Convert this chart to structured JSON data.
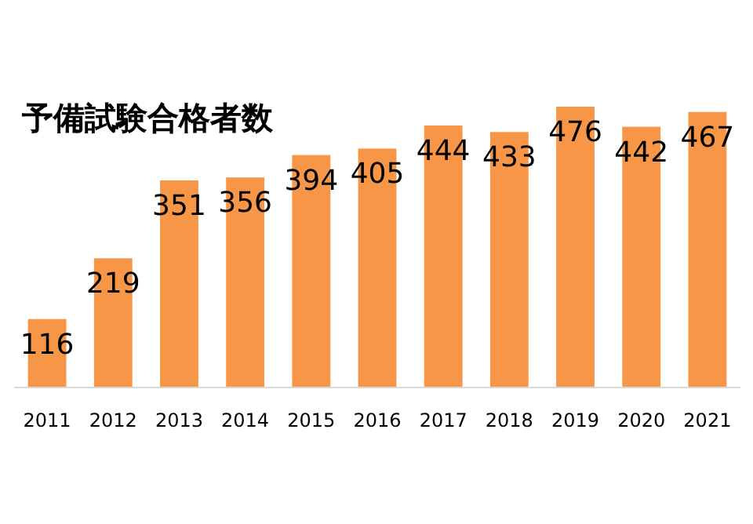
{
  "chart_data": {
    "type": "bar",
    "title": "予備試験合格者数",
    "categories": [
      "2011",
      "2012",
      "2013",
      "2014",
      "2015",
      "2016",
      "2017",
      "2018",
      "2019",
      "2020",
      "2021"
    ],
    "values": [
      116,
      219,
      351,
      356,
      394,
      405,
      444,
      433,
      476,
      442,
      467
    ],
    "color": "#f79646",
    "data_labels": true
  }
}
